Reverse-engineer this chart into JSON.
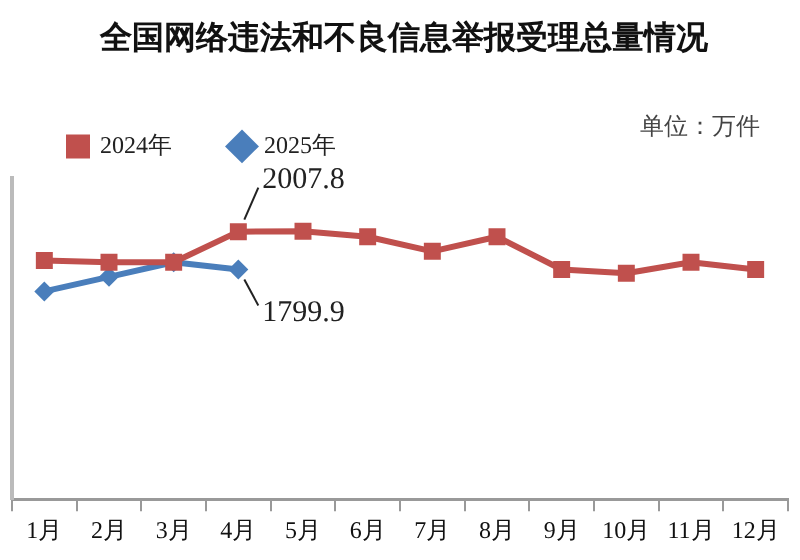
{
  "chart_data": {
    "type": "line",
    "title": "全国网络违法和不良信息举报受理总量情况",
    "annotations": [
      "单位：万件"
    ],
    "categories": [
      "1月",
      "2月",
      "3月",
      "4月",
      "5月",
      "6月",
      "7月",
      "8月",
      "9月",
      "10月",
      "11月",
      "12月"
    ],
    "series": [
      {
        "name": "2024年",
        "color": "#c0504d",
        "marker": "square",
        "values": [
          1850,
          1840,
          1840,
          2007.8,
          2010,
          1980,
          1900,
          1980,
          1800,
          1780,
          1840,
          1800
        ],
        "value_labels": [
          null,
          null,
          null,
          "2007.8",
          null,
          null,
          null,
          null,
          null,
          null,
          null,
          null
        ]
      },
      {
        "name": "2025年",
        "color": "#4a7ebb",
        "marker": "diamond",
        "values": [
          1680,
          1760,
          1840,
          1799.9,
          null,
          null,
          null,
          null,
          null,
          null,
          null,
          null
        ],
        "value_labels": [
          null,
          null,
          null,
          "1799.9",
          null,
          null,
          null,
          null,
          null,
          null,
          null,
          null
        ]
      }
    ],
    "ylim": [
      540,
      2300
    ],
    "tick_labels": "x",
    "grid": false,
    "legend": "top left",
    "line_style": "solid"
  }
}
